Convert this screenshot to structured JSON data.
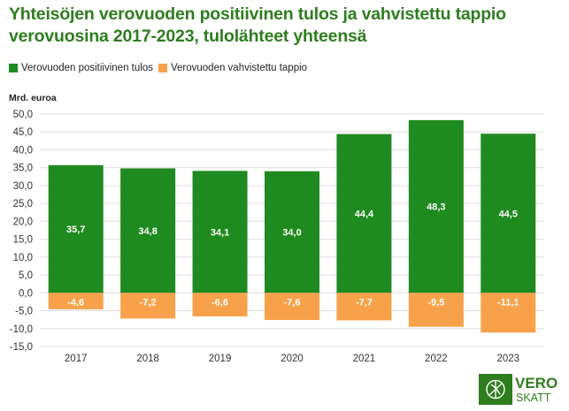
{
  "title": "Yhteisöjen verovuoden positiivinen tulos ja vahvistettu tappio verovuosina 2017-2023, tulolähteet yhteensä",
  "legend": {
    "positive": "Verovuoden positiivinen tulos",
    "loss": "Verovuoden vahvistettu tappio"
  },
  "colors": {
    "positive": "#1f8a1f",
    "loss": "#f7a24a",
    "grid": "#dedede",
    "title": "#2e7d1f"
  },
  "logo": {
    "top": "VERO",
    "bottom": "SKATT"
  },
  "chart_data": {
    "type": "bar",
    "title": "Yhteisöjen verovuoden positiivinen tulos ja vahvistettu tappio verovuosina 2017-2023, tulolähteet yhteensä",
    "ylabel": "Mrd. euroa",
    "xlabel": "",
    "categories": [
      "2017",
      "2018",
      "2019",
      "2020",
      "2021",
      "2022",
      "2023"
    ],
    "series": [
      {
        "name": "Verovuoden positiivinen tulos",
        "values": [
          35.7,
          34.8,
          34.1,
          34.0,
          44.4,
          48.3,
          44.5
        ],
        "labels": [
          "35,7",
          "34,8",
          "34,1",
          "34,0",
          "44,4",
          "48,3",
          "44,5"
        ]
      },
      {
        "name": "Verovuoden vahvistettu tappio",
        "values": [
          -4.6,
          -7.2,
          -6.6,
          -7.6,
          -7.7,
          -9.5,
          -11.1
        ],
        "labels": [
          "-4,6",
          "-7,2",
          "-6,6",
          "-7,6",
          "-7,7",
          "-9,5",
          "-11,1"
        ]
      }
    ],
    "ylim": [
      -15,
      50
    ],
    "yticks": [
      -15,
      -10,
      -5,
      0,
      5,
      10,
      15,
      20,
      25,
      30,
      35,
      40,
      45,
      50
    ],
    "ytick_labels": [
      "-15,0",
      "-10,0",
      "-5,0",
      "0,0",
      "5,0",
      "10,0",
      "15,0",
      "20,0",
      "25,0",
      "30,0",
      "35,0",
      "40,0",
      "45,0",
      "50,0"
    ],
    "grid": true,
    "legend_position": "top-left",
    "stacked": true
  }
}
